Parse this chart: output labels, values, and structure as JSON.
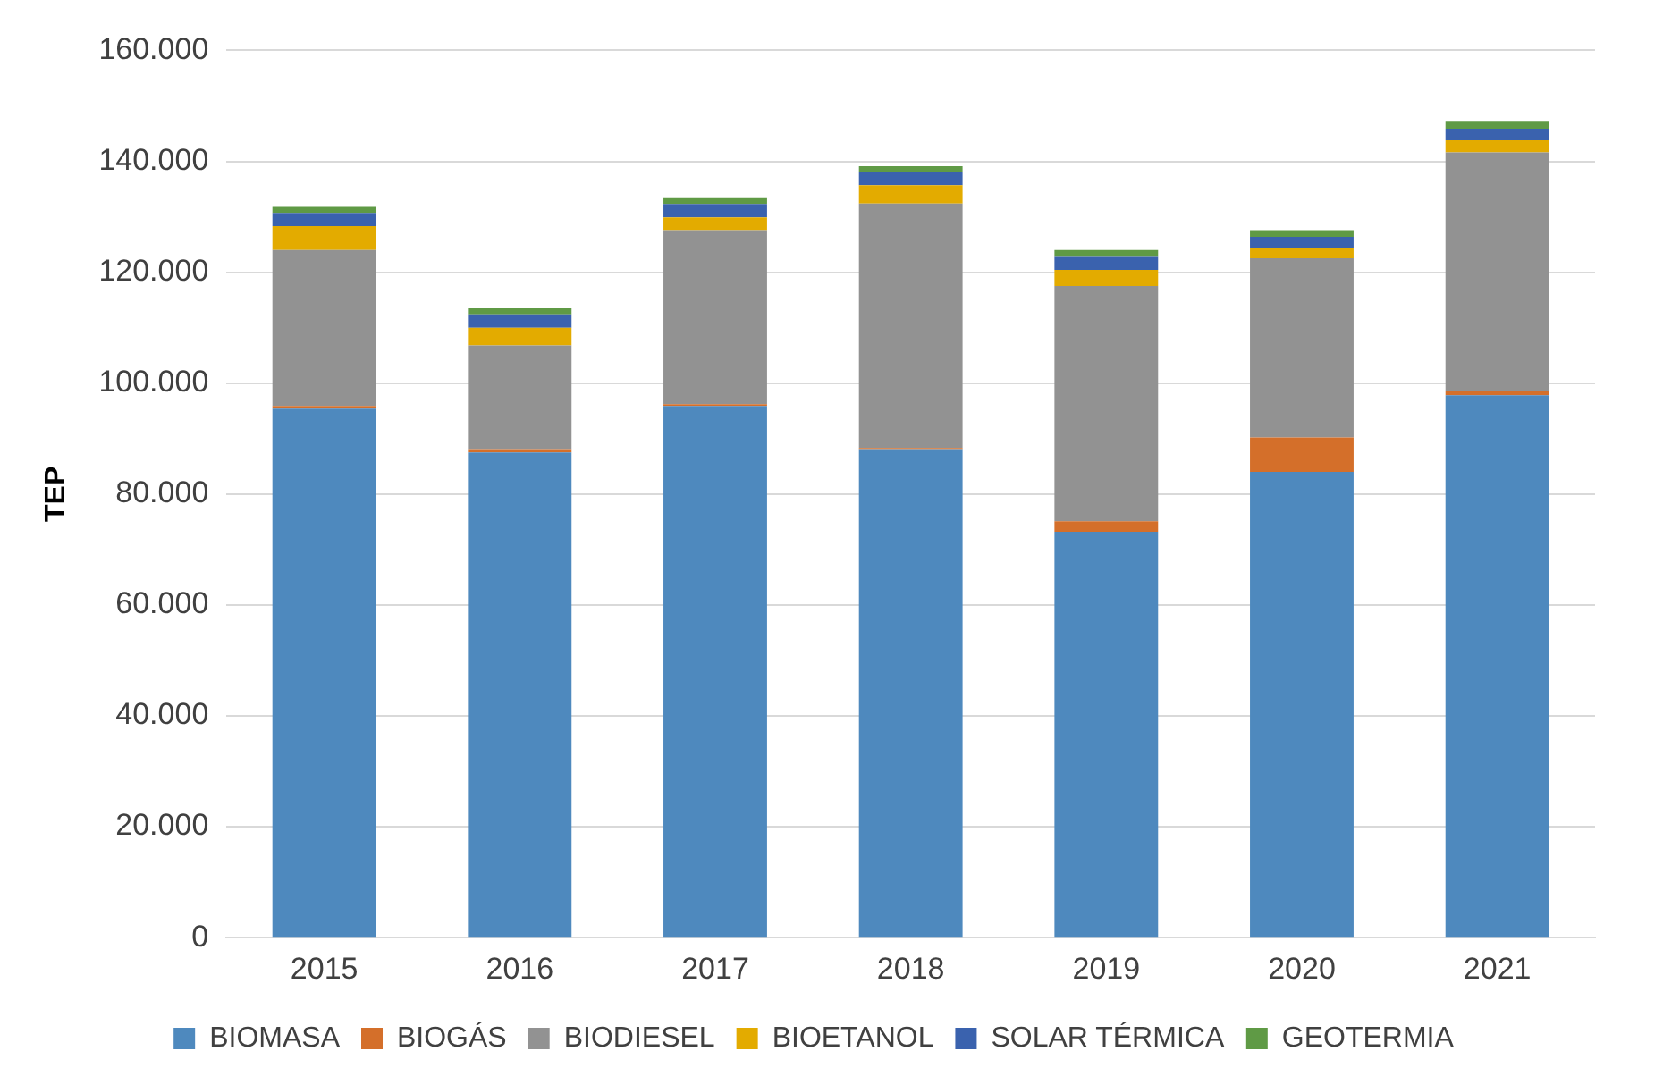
{
  "chart_data": {
    "type": "bar",
    "stacked": true,
    "ylabel": "TEP",
    "categories": [
      "2015",
      "2016",
      "2017",
      "2018",
      "2019",
      "2020",
      "2021"
    ],
    "series": [
      {
        "name": "BIOMASA",
        "color": "#4e89be",
        "values": [
          95400,
          87500,
          95900,
          88100,
          73200,
          84000,
          97800
        ]
      },
      {
        "name": "BIOGÁS",
        "color": "#d46f2a",
        "values": [
          500,
          600,
          300,
          200,
          1900,
          6200,
          800
        ]
      },
      {
        "name": "BIODIESEL",
        "color": "#929292",
        "values": [
          28100,
          18700,
          31400,
          44100,
          42400,
          32300,
          43000
        ]
      },
      {
        "name": "BIOETANOL",
        "color": "#e3ab00",
        "values": [
          4300,
          3200,
          2300,
          3300,
          2900,
          1800,
          2200
        ]
      },
      {
        "name": "SOLAR TÉRMICA",
        "color": "#3a62ae",
        "values": [
          2400,
          2400,
          2400,
          2300,
          2500,
          2100,
          2100
        ]
      },
      {
        "name": "GEOTERMIA",
        "color": "#5f9a45",
        "values": [
          1100,
          1100,
          1200,
          1100,
          1100,
          1200,
          1400
        ]
      }
    ],
    "ylim": [
      0,
      160000
    ],
    "yticks": [
      {
        "value": 0,
        "label": "0"
      },
      {
        "value": 20000,
        "label": "20.000"
      },
      {
        "value": 40000,
        "label": "40.000"
      },
      {
        "value": 60000,
        "label": "60.000"
      },
      {
        "value": 80000,
        "label": "80.000"
      },
      {
        "value": 100000,
        "label": "100.000"
      },
      {
        "value": 120000,
        "label": "120.000"
      },
      {
        "value": 140000,
        "label": "140.000"
      },
      {
        "value": 160000,
        "label": "160.000"
      }
    ],
    "grid": "y",
    "legend": "bottom"
  }
}
